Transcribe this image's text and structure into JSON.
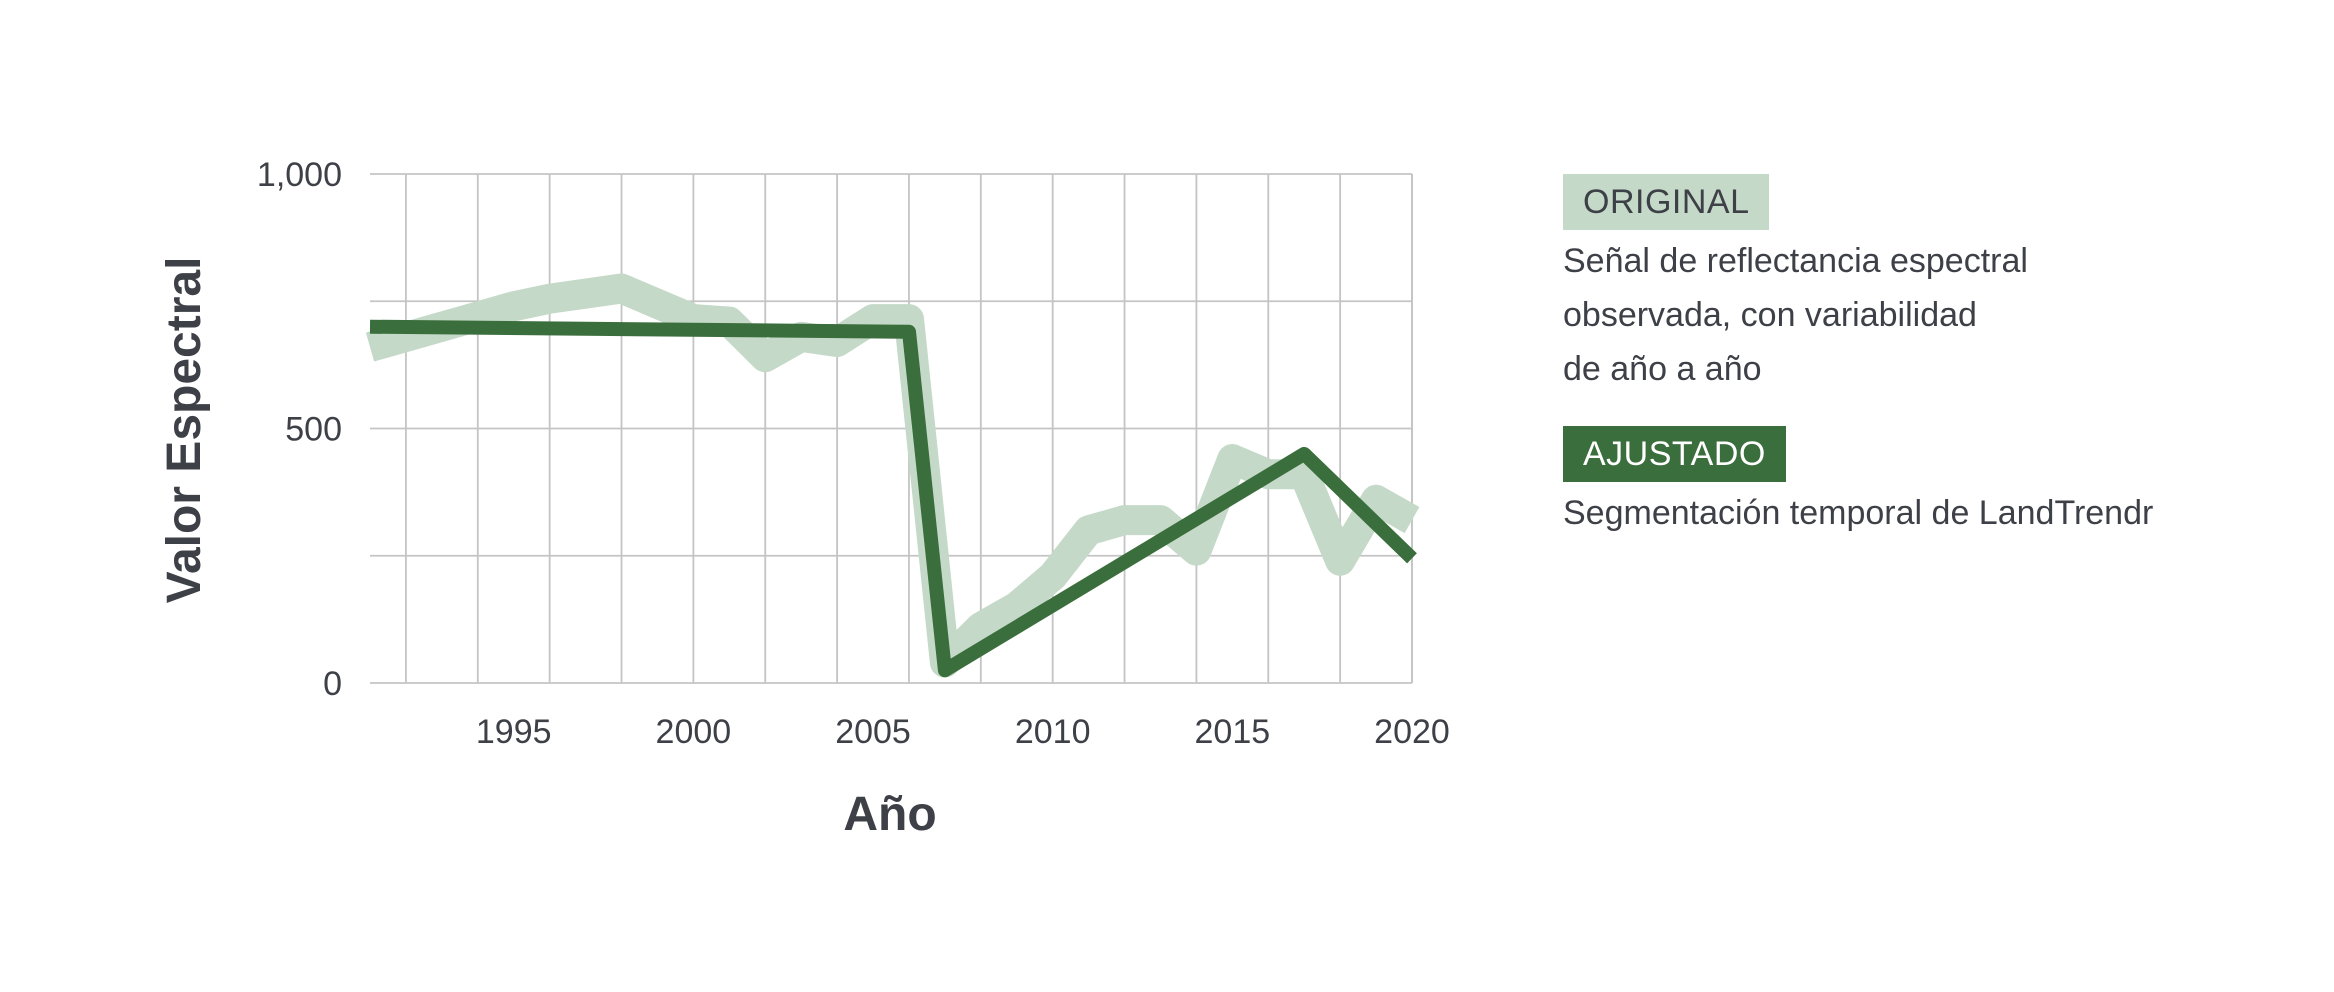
{
  "chart_data": {
    "type": "line",
    "xlabel": "Año",
    "ylabel": "Valor Espectral",
    "xlim": [
      1991,
      2020
    ],
    "ylim": [
      0,
      1000
    ],
    "xticks": [
      1995,
      2000,
      2005,
      2010,
      2015,
      2020
    ],
    "yticks": [
      0,
      500,
      1000
    ],
    "ytick_labels": [
      "0",
      "500",
      "1,000"
    ],
    "grid": true,
    "legend_position": "right",
    "colors": {
      "original": "#c5d9c8",
      "ajustado": "#3b6e3d",
      "text": "#3d4047",
      "grid": "#c4c4c4"
    },
    "series": [
      {
        "name": "ORIGINAL",
        "x": [
          1991,
          1992,
          1993,
          1994,
          1995,
          1996,
          1997,
          1998,
          1999,
          2000,
          2001,
          2002,
          2003,
          2004,
          2005,
          2006,
          2007,
          2008,
          2009,
          2010,
          2011,
          2012,
          2013,
          2014,
          2015,
          2016,
          2017,
          2018,
          2019,
          2020
        ],
        "values": [
          660,
          680,
          700,
          720,
          740,
          755,
          765,
          775,
          745,
          715,
          710,
          640,
          680,
          670,
          715,
          715,
          40,
          110,
          150,
          210,
          300,
          320,
          320,
          260,
          440,
          410,
          410,
          240,
          360,
          320
        ]
      },
      {
        "name": "AJUSTADO",
        "x": [
          1991,
          2006,
          2007,
          2017,
          2020
        ],
        "values": [
          700,
          690,
          25,
          450,
          245
        ]
      }
    ]
  },
  "legend": {
    "original_label": "ORIGINAL",
    "original_desc": "Señal de reflectancia espectral\nobservada, con variabilidad\nde año a año",
    "ajustado_label": "AJUSTADO",
    "ajustado_desc": "Segmentación temporal de LandTrendr"
  }
}
